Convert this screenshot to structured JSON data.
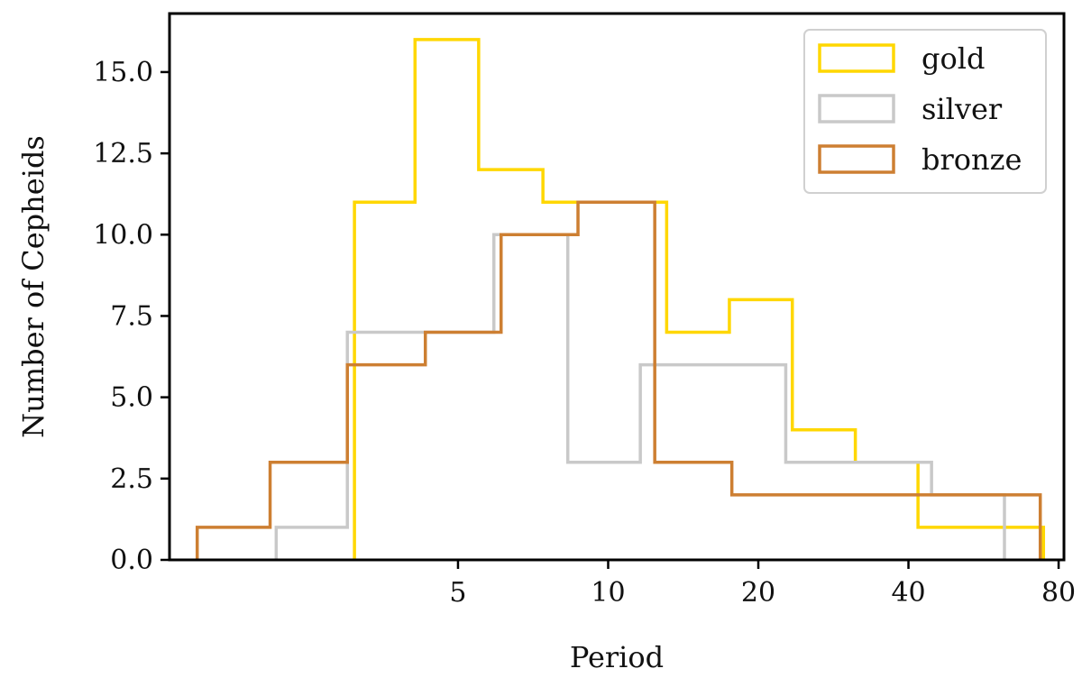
{
  "chart_data": {
    "type": "histogram",
    "xlabel": "Period",
    "ylabel": "Number of Cepheids",
    "xscale": "log",
    "xlim": [
      1.32,
      82
    ],
    "ylim": [
      0,
      16.8
    ],
    "xticks": [
      {
        "value": 5,
        "label": "5"
      },
      {
        "value": 10,
        "label": "10"
      },
      {
        "value": 20,
        "label": "20"
      },
      {
        "value": 40,
        "label": "40"
      },
      {
        "value": 80,
        "label": "80"
      }
    ],
    "yticks": [
      {
        "value": 0,
        "label": "0.0"
      },
      {
        "value": 2.5,
        "label": "2.5"
      },
      {
        "value": 5,
        "label": "5.0"
      },
      {
        "value": 7.5,
        "label": "7.5"
      },
      {
        "value": 10,
        "label": "10.0"
      },
      {
        "value": 12.5,
        "label": "12.5"
      },
      {
        "value": 15,
        "label": "15.0"
      }
    ],
    "legend_position": "top-right",
    "series": [
      {
        "name": "gold",
        "color": "#FFD700",
        "edges": [
          3.1,
          4.1,
          5.5,
          7.4,
          9.8,
          13.1,
          17.5,
          23.4,
          31.3,
          41.8,
          55.8,
          74.6
        ],
        "counts": [
          11,
          16,
          12,
          11,
          11,
          7,
          8,
          4,
          3,
          1,
          1
        ]
      },
      {
        "name": "silver",
        "color": "#C9C9C9",
        "edges": [
          2.16,
          3.0,
          4.2,
          5.9,
          8.3,
          11.6,
          16.2,
          22.7,
          31.8,
          44.5,
          62.3
        ],
        "counts": [
          1,
          7,
          7,
          10,
          3,
          6,
          6,
          3,
          3,
          2
        ]
      },
      {
        "name": "bronze",
        "color": "#CD7F32",
        "edges": [
          1.5,
          2.1,
          3.0,
          4.3,
          6.1,
          8.7,
          12.4,
          17.7,
          25.3,
          36.1,
          51.5,
          73.5
        ],
        "counts": [
          1,
          3,
          6,
          7,
          10,
          11,
          3,
          2,
          2,
          2,
          2
        ]
      }
    ]
  }
}
